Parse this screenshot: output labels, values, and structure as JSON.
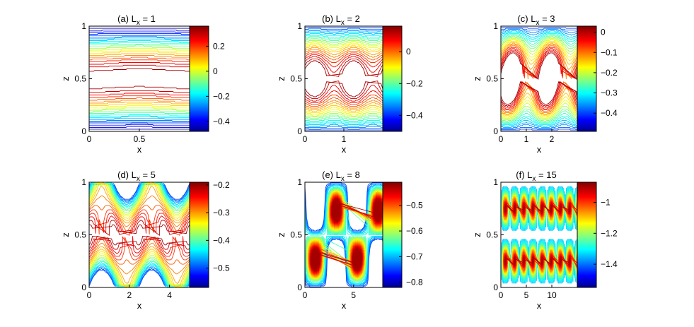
{
  "chart_data": [
    {
      "type": "contour",
      "title": "(a) L",
      "title_sub": "x",
      "title_tail": " = 1",
      "Lx": 1,
      "xlabel": "x",
      "ylabel": "z",
      "xlim": [
        0,
        1
      ],
      "ylim": [
        0,
        1
      ],
      "xticks": [
        0,
        0.5
      ],
      "xtick_labels": [
        "0",
        "0.5"
      ],
      "yticks": [
        0,
        0.5,
        1
      ],
      "ytick_labels": [
        "0",
        "0.5",
        "1"
      ],
      "colorbar": {
        "vmin": -0.48,
        "vmax": 0.36,
        "ticks": [
          0.2,
          0,
          -0.2,
          -0.4
        ],
        "labels": [
          "0.2",
          "0",
          "−0.2",
          "−0.4"
        ]
      }
    },
    {
      "type": "contour",
      "title": "(b) L",
      "title_sub": "x",
      "title_tail": " = 2",
      "Lx": 2,
      "xlabel": "x",
      "ylabel": "z",
      "xlim": [
        0,
        2
      ],
      "ylim": [
        0,
        1
      ],
      "xticks": [
        0,
        1
      ],
      "xtick_labels": [
        "0",
        "1"
      ],
      "yticks": [
        0,
        0.5,
        1
      ],
      "ytick_labels": [
        "0",
        "0.5",
        "1"
      ],
      "colorbar": {
        "vmin": -0.5,
        "vmax": 0.16,
        "ticks": [
          0,
          -0.2,
          -0.4
        ],
        "labels": [
          "0",
          "−0.2",
          "−0.4"
        ]
      }
    },
    {
      "type": "contour",
      "title": "(c) L",
      "title_sub": "x",
      "title_tail": " = 3",
      "Lx": 3,
      "xlabel": "x",
      "ylabel": "z",
      "xlim": [
        0,
        3
      ],
      "ylim": [
        0,
        1
      ],
      "xticks": [
        0,
        1,
        2
      ],
      "xtick_labels": [
        "0",
        "1",
        "2"
      ],
      "yticks": [
        0,
        0.5,
        1
      ],
      "ytick_labels": [
        "0",
        "0.5",
        "1"
      ],
      "colorbar": {
        "vmin": -0.49,
        "vmax": 0.03,
        "ticks": [
          0,
          -0.1,
          -0.2,
          -0.3,
          -0.4
        ],
        "labels": [
          "0",
          "−0.1",
          "−0.2",
          "−0.3",
          "−0.4"
        ]
      }
    },
    {
      "type": "contour",
      "title": "(d) L",
      "title_sub": "x",
      "title_tail": " = 5",
      "Lx": 5,
      "xlabel": "x",
      "ylabel": "z",
      "xlim": [
        0,
        5
      ],
      "ylim": [
        0,
        1
      ],
      "xticks": [
        0,
        2,
        4
      ],
      "xtick_labels": [
        "0",
        "2",
        "4"
      ],
      "yticks": [
        0,
        0.5,
        1
      ],
      "ytick_labels": [
        "0",
        "0.5",
        "1"
      ],
      "colorbar": {
        "vmin": -0.57,
        "vmax": -0.19,
        "ticks": [
          -0.2,
          -0.3,
          -0.4,
          -0.5
        ],
        "labels": [
          "−0.2",
          "−0.3",
          "−0.4",
          "−0.5"
        ]
      }
    },
    {
      "type": "contour",
      "title": "(e) L",
      "title_sub": "x",
      "title_tail": " = 8",
      "Lx": 8,
      "xlabel": "x",
      "ylabel": "z",
      "xlim": [
        0,
        8
      ],
      "ylim": [
        0,
        1
      ],
      "xticks": [
        0,
        5
      ],
      "xtick_labels": [
        "0",
        "5"
      ],
      "yticks": [
        0,
        0.5,
        1
      ],
      "ytick_labels": [
        "0",
        "0.5",
        "1"
      ],
      "colorbar": {
        "vmin": -0.82,
        "vmax": -0.41,
        "ticks": [
          -0.5,
          -0.6,
          -0.7,
          -0.8
        ],
        "labels": [
          "−0.5",
          "−0.6",
          "−0.7",
          "−0.8"
        ]
      }
    },
    {
      "type": "contour",
      "title": "(f) L",
      "title_sub": "x",
      "title_tail": " = 15",
      "Lx": 15,
      "xlabel": "x",
      "ylabel": "z",
      "xlim": [
        0,
        15
      ],
      "ylim": [
        0,
        1
      ],
      "xticks": [
        0,
        5,
        10
      ],
      "xtick_labels": [
        "0",
        "5",
        "10"
      ],
      "yticks": [
        0,
        0.5,
        1
      ],
      "ytick_labels": [
        "0",
        "0.5",
        "1"
      ],
      "colorbar": {
        "vmin": -1.55,
        "vmax": -0.87,
        "ticks": [
          -1,
          -1.2,
          -1.4
        ],
        "labels": [
          "−1",
          "−1.2",
          "−1.4"
        ]
      }
    }
  ]
}
